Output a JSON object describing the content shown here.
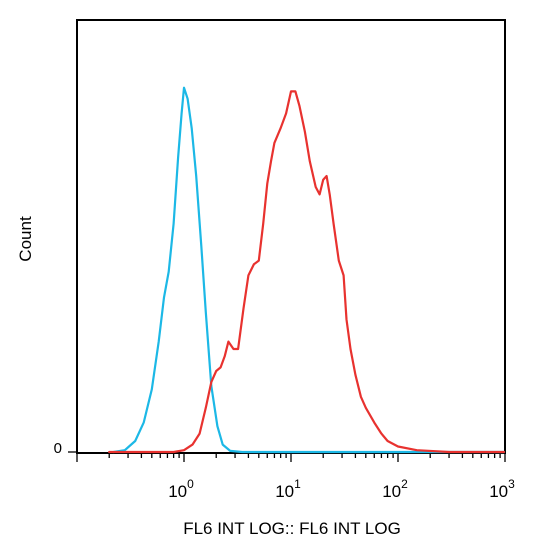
{
  "chart_data": {
    "type": "line",
    "title": "",
    "xlabel": "FL6 INT LOG:: FL6 INT LOG",
    "ylabel": "Count",
    "x_scale": "log",
    "xlim": [
      0.1,
      1000
    ],
    "ylim": [
      0,
      100
    ],
    "x_ticks": [
      {
        "value": 1,
        "base": "10",
        "exp": "0"
      },
      {
        "value": 10,
        "base": "10",
        "exp": "1"
      },
      {
        "value": 100,
        "base": "10",
        "exp": "2"
      },
      {
        "value": 1000,
        "base": "10",
        "exp": "3"
      }
    ],
    "y_ticks": [
      {
        "value": 0,
        "label": "0"
      }
    ],
    "grid": false,
    "legend": "none",
    "series": [
      {
        "color": "#1cb8e6",
        "x": [
          0.22,
          0.28,
          0.35,
          0.42,
          0.5,
          0.58,
          0.65,
          0.72,
          0.8,
          0.88,
          0.95,
          1.0,
          1.08,
          1.18,
          1.3,
          1.45,
          1.6,
          1.8,
          2.05,
          2.3,
          2.7,
          3.5,
          5,
          10,
          50,
          1000
        ],
        "y": [
          0,
          0.5,
          3,
          8,
          17,
          30,
          42,
          49,
          62,
          80,
          92,
          99,
          96,
          88,
          75,
          56,
          38,
          18,
          7,
          2,
          0.3,
          0,
          0,
          0,
          0,
          0
        ]
      },
      {
        "color": "#e8322f",
        "x": [
          0.2,
          0.5,
          0.8,
          1.0,
          1.2,
          1.4,
          1.6,
          1.8,
          2.0,
          2.2,
          2.4,
          2.6,
          2.9,
          3.2,
          3.6,
          4.0,
          4.5,
          5.0,
          5.5,
          6.0,
          6.5,
          7.0,
          8.0,
          9.0,
          10.0,
          11.0,
          12.0,
          13.5,
          15.0,
          17.0,
          18.5,
          20.0,
          21.5,
          23.0,
          25.0,
          28.0,
          31.0,
          33.0,
          36.0,
          40.0,
          45.0,
          50.0,
          60.0,
          70.0,
          80.0,
          100.0,
          150.0,
          300.0,
          1000.0
        ],
        "y": [
          0,
          0,
          0,
          0.5,
          2,
          5,
          12,
          19,
          22,
          23,
          26,
          30,
          28,
          28,
          39,
          48,
          51,
          52,
          62,
          73,
          79,
          84,
          88,
          92,
          98,
          98,
          94,
          87,
          79,
          72,
          70,
          74,
          75,
          70,
          62,
          52,
          48,
          36,
          28,
          21,
          15,
          12,
          8,
          5,
          3,
          1.5,
          0.5,
          0,
          0
        ]
      }
    ]
  }
}
